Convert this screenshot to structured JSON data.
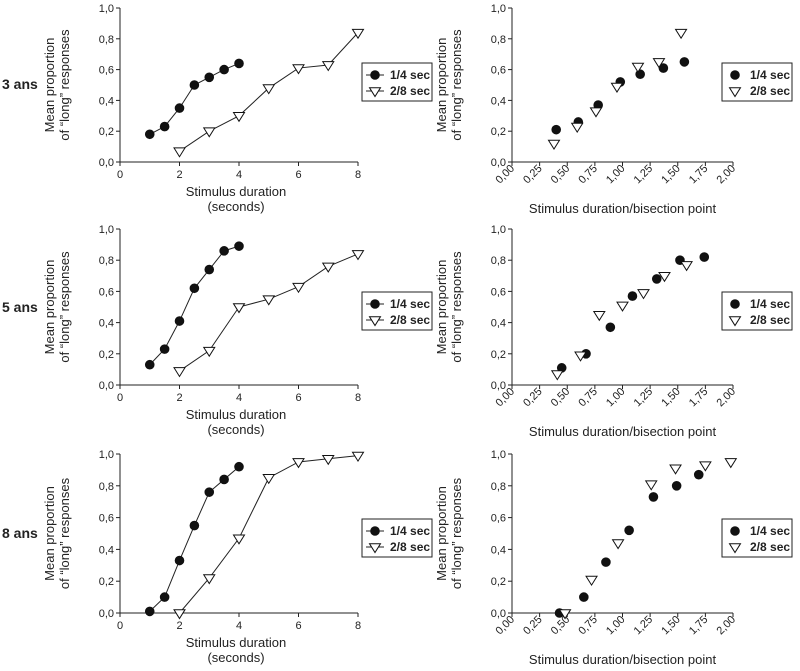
{
  "row_labels": [
    "3 ans",
    "5 ans",
    "8 ans"
  ],
  "chart_data": [
    {
      "type": "line",
      "row_label": "3 ans",
      "xlabel": [
        "Stimulus duration",
        "(seconds)"
      ],
      "ylabel": [
        "Mean proportion",
        "of “long” responses"
      ],
      "xlim": [
        0,
        8
      ],
      "xticks": [
        "0",
        "2",
        "4",
        "6",
        "8"
      ],
      "ylim": [
        0,
        1
      ],
      "yticks": [
        "0,0",
        "0,2",
        "0,4",
        "0,6",
        "0,8",
        "1,0"
      ],
      "legend": "right",
      "series": [
        {
          "name": "1/4 sec",
          "marker": "circle",
          "line": true,
          "x": [
            1,
            1.5,
            2,
            2.5,
            3,
            3.5,
            4
          ],
          "y": [
            0.18,
            0.23,
            0.35,
            0.5,
            0.55,
            0.6,
            0.64
          ]
        },
        {
          "name": "2/8 sec",
          "marker": "triangle-down",
          "line": true,
          "x": [
            2,
            3,
            4,
            5,
            6,
            7,
            8
          ],
          "y": [
            0.07,
            0.2,
            0.3,
            0.48,
            0.61,
            0.63,
            0.84
          ]
        }
      ]
    },
    {
      "type": "scatter",
      "row_label": "3 ans",
      "xlabel": [
        "Stimulus duration/bisection point"
      ],
      "ylabel": [
        "Mean proportion",
        "of “long” responses"
      ],
      "xlim": [
        0,
        2
      ],
      "xticks": [
        "0,00",
        "0,25",
        "0,50",
        "0,75",
        "1,00",
        "1,25",
        "1,50",
        "1,75",
        "2,00"
      ],
      "ylim": [
        0,
        1
      ],
      "yticks": [
        "0,0",
        "0,2",
        "0,4",
        "0,6",
        "0,8",
        "1,0"
      ],
      "legend": "right",
      "series": [
        {
          "name": "1/4 sec",
          "marker": "circle",
          "line": false,
          "x": [
            0.4,
            0.6,
            0.78,
            0.98,
            1.16,
            1.37,
            1.56
          ],
          "y": [
            0.21,
            0.26,
            0.37,
            0.52,
            0.57,
            0.61,
            0.65
          ]
        },
        {
          "name": "2/8 sec",
          "marker": "triangle-down",
          "line": false,
          "x": [
            0.38,
            0.59,
            0.76,
            0.95,
            1.14,
            1.33,
            1.53
          ],
          "y": [
            0.12,
            0.23,
            0.33,
            0.49,
            0.62,
            0.65,
            0.84
          ]
        }
      ]
    },
    {
      "type": "line",
      "row_label": "5 ans",
      "xlabel": [
        "Stimulus duration",
        "(seconds)"
      ],
      "ylabel": [
        "Mean proportion",
        "of “long” responses"
      ],
      "xlim": [
        0,
        8
      ],
      "xticks": [
        "0",
        "2",
        "4",
        "6",
        "8"
      ],
      "ylim": [
        0,
        1
      ],
      "yticks": [
        "0,0",
        "0,2",
        "0,4",
        "0,6",
        "0,8",
        "1,0"
      ],
      "legend": "right",
      "series": [
        {
          "name": "1/4 sec",
          "marker": "circle",
          "line": true,
          "x": [
            1,
            1.5,
            2,
            2.5,
            3,
            3.5,
            4
          ],
          "y": [
            0.13,
            0.23,
            0.41,
            0.62,
            0.74,
            0.86,
            0.89
          ]
        },
        {
          "name": "2/8 sec",
          "marker": "triangle-down",
          "line": true,
          "x": [
            2,
            3,
            4,
            5,
            6,
            7,
            8
          ],
          "y": [
            0.09,
            0.22,
            0.5,
            0.55,
            0.63,
            0.76,
            0.84
          ]
        }
      ]
    },
    {
      "type": "scatter",
      "row_label": "5 ans",
      "xlabel": [
        "Stimulus duration/bisection point"
      ],
      "ylabel": [
        "Mean proportion",
        "of “long” responses"
      ],
      "xlim": [
        0,
        2
      ],
      "xticks": [
        "0,00",
        "0,25",
        "0,50",
        "0,75",
        "1,00",
        "1,25",
        "1,50",
        "1,75",
        "2,00"
      ],
      "ylim": [
        0,
        1
      ],
      "yticks": [
        "0,0",
        "0,2",
        "0,4",
        "0,6",
        "0,8",
        "1,0"
      ],
      "legend": "right",
      "series": [
        {
          "name": "1/4 sec",
          "marker": "circle",
          "line": false,
          "x": [
            0.45,
            0.67,
            0.89,
            1.09,
            1.31,
            1.52,
            1.74
          ],
          "y": [
            0.11,
            0.2,
            0.37,
            0.57,
            0.68,
            0.8,
            0.82
          ]
        },
        {
          "name": "2/8 sec",
          "marker": "triangle-down",
          "line": false,
          "x": [
            0.41,
            0.62,
            0.79,
            1.0,
            1.19,
            1.38,
            1.58
          ],
          "y": [
            0.07,
            0.19,
            0.45,
            0.51,
            0.59,
            0.7,
            0.77
          ]
        }
      ]
    },
    {
      "type": "line",
      "row_label": "8 ans",
      "xlabel": [
        "Stimulus duration",
        "(seconds)"
      ],
      "ylabel": [
        "Mean proportion",
        "of “long” responses"
      ],
      "xlim": [
        0,
        8
      ],
      "xticks": [
        "0",
        "2",
        "4",
        "6",
        "8"
      ],
      "ylim": [
        0,
        1
      ],
      "yticks": [
        "0,0",
        "0,2",
        "0,4",
        "0,6",
        "0,8",
        "1,0"
      ],
      "legend": "right",
      "series": [
        {
          "name": "1/4 sec",
          "marker": "circle",
          "line": true,
          "x": [
            1,
            1.5,
            2,
            2.5,
            3,
            3.5,
            4
          ],
          "y": [
            0.01,
            0.1,
            0.33,
            0.55,
            0.76,
            0.84,
            0.92
          ]
        },
        {
          "name": "2/8 sec",
          "marker": "triangle-down",
          "line": true,
          "x": [
            2,
            3,
            4,
            5,
            6,
            7,
            8
          ],
          "y": [
            0.0,
            0.22,
            0.47,
            0.85,
            0.95,
            0.97,
            0.99
          ]
        }
      ]
    },
    {
      "type": "scatter",
      "row_label": "8 ans",
      "xlabel": [
        "Stimulus duration/bisection point"
      ],
      "ylabel": [
        "Mean proportion",
        "of “long” responses"
      ],
      "xlim": [
        0,
        2
      ],
      "xticks": [
        "0,00",
        "0,25",
        "0,50",
        "0,75",
        "1,00",
        "1,25",
        "1,50",
        "1,75",
        "2,00"
      ],
      "ylim": [
        0,
        1
      ],
      "yticks": [
        "0,0",
        "0,2",
        "0,4",
        "0,6",
        "0,8",
        "1,0"
      ],
      "legend": "right",
      "series": [
        {
          "name": "1/4 sec",
          "marker": "circle",
          "line": false,
          "x": [
            0.43,
            0.65,
            0.85,
            1.06,
            1.28,
            1.49,
            1.69
          ],
          "y": [
            0.0,
            0.1,
            0.32,
            0.52,
            0.73,
            0.8,
            0.87
          ]
        },
        {
          "name": "2/8 sec",
          "marker": "triangle-down",
          "line": false,
          "x": [
            0.48,
            0.72,
            0.96,
            1.26,
            1.48,
            1.75,
            1.98
          ],
          "y": [
            0.0,
            0.21,
            0.44,
            0.81,
            0.91,
            0.93,
            0.95
          ]
        }
      ]
    }
  ]
}
